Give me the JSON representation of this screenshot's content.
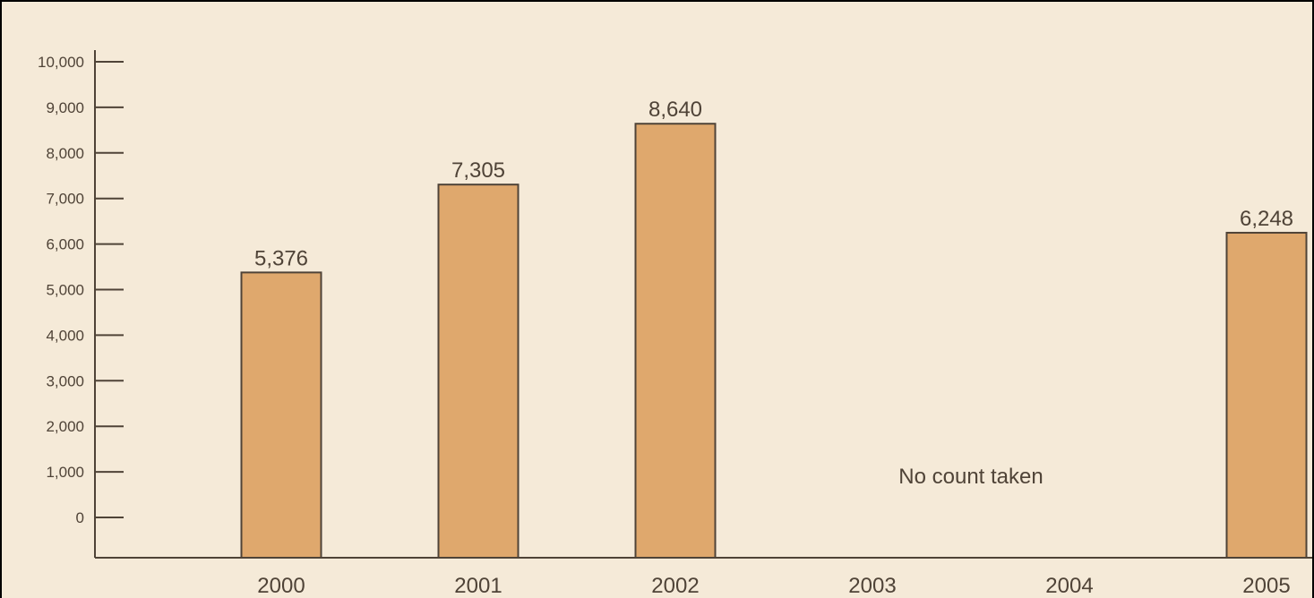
{
  "chart_data": {
    "type": "bar",
    "categories": [
      "2000",
      "2001",
      "2002",
      "2003",
      "2004",
      "2005"
    ],
    "values": [
      5376,
      7305,
      8640,
      null,
      null,
      6248
    ],
    "data_labels": [
      "5,376",
      "7,305",
      "8,640",
      "",
      "",
      "6,248"
    ],
    "title": "",
    "xlabel": "",
    "ylabel": "",
    "ylim": [
      0,
      10000
    ],
    "y_ticks": [
      {
        "value": 0,
        "label": "0"
      },
      {
        "value": 1000,
        "label": "1,000"
      },
      {
        "value": 2000,
        "label": "2,000"
      },
      {
        "value": 3000,
        "label": "3,000"
      },
      {
        "value": 4000,
        "label": "4,000"
      },
      {
        "value": 5000,
        "label": "5,000"
      },
      {
        "value": 6000,
        "label": "6,000"
      },
      {
        "value": 7000,
        "label": "7,000"
      },
      {
        "value": 8000,
        "label": "8,000"
      },
      {
        "value": 9000,
        "label": "9,000"
      },
      {
        "value": 10000,
        "label": "10,000"
      }
    ],
    "annotation": "No count taken",
    "grid": false,
    "colors": {
      "background": "#f5ead8",
      "bar": "#dfa86d",
      "axis": "#4f4337"
    }
  }
}
